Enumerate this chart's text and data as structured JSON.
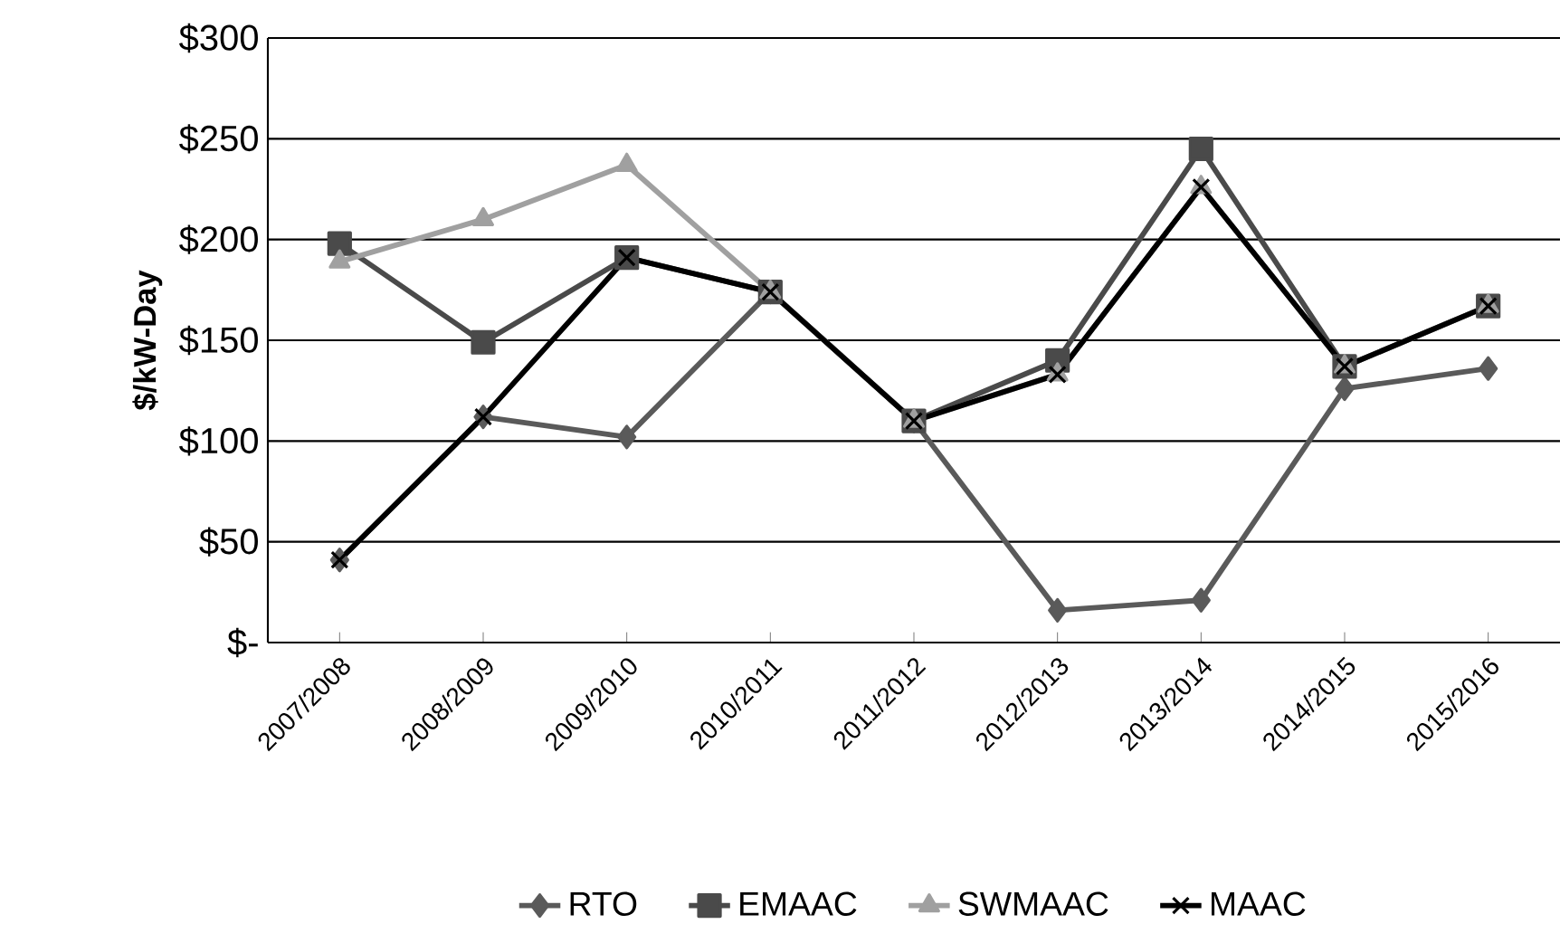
{
  "chart_data": {
    "type": "line",
    "ylabel": "$/kW-Day",
    "categories": [
      "2007/2008",
      "2008/2009",
      "2009/2010",
      "2010/2011",
      "2011/2012",
      "2012/2013",
      "2013/2014",
      "2014/2015",
      "2015/2016"
    ],
    "series": [
      {
        "name": "RTO",
        "color": "#5a5a5a",
        "marker": "diamond",
        "values": [
          41,
          112,
          102,
          174,
          110,
          16,
          21,
          126,
          136
        ]
      },
      {
        "name": "EMAAC",
        "color": "#4a4a4a",
        "marker": "square",
        "values": [
          198,
          149,
          191,
          174,
          110,
          140,
          245,
          137,
          167
        ]
      },
      {
        "name": "SWMAAC",
        "color": "#a0a0a0",
        "marker": "triangle",
        "values": [
          189,
          210,
          237,
          174,
          110,
          133,
          226,
          137,
          167
        ]
      },
      {
        "name": "MAAC",
        "color": "#000000",
        "marker": "cross",
        "values": [
          41,
          112,
          191,
          174,
          110,
          133,
          226,
          137,
          167
        ]
      }
    ],
    "ylim": [
      0,
      300
    ],
    "yticks": [
      {
        "value": 0,
        "label": "$-"
      },
      {
        "value": 50,
        "label": "$50"
      },
      {
        "value": 100,
        "label": "$100"
      },
      {
        "value": 150,
        "label": "$150"
      },
      {
        "value": 200,
        "label": "$200"
      },
      {
        "value": 250,
        "label": "$250"
      },
      {
        "value": 300,
        "label": "$300"
      }
    ],
    "grid": "y",
    "legend": "bottom",
    "line_style": "solid"
  }
}
